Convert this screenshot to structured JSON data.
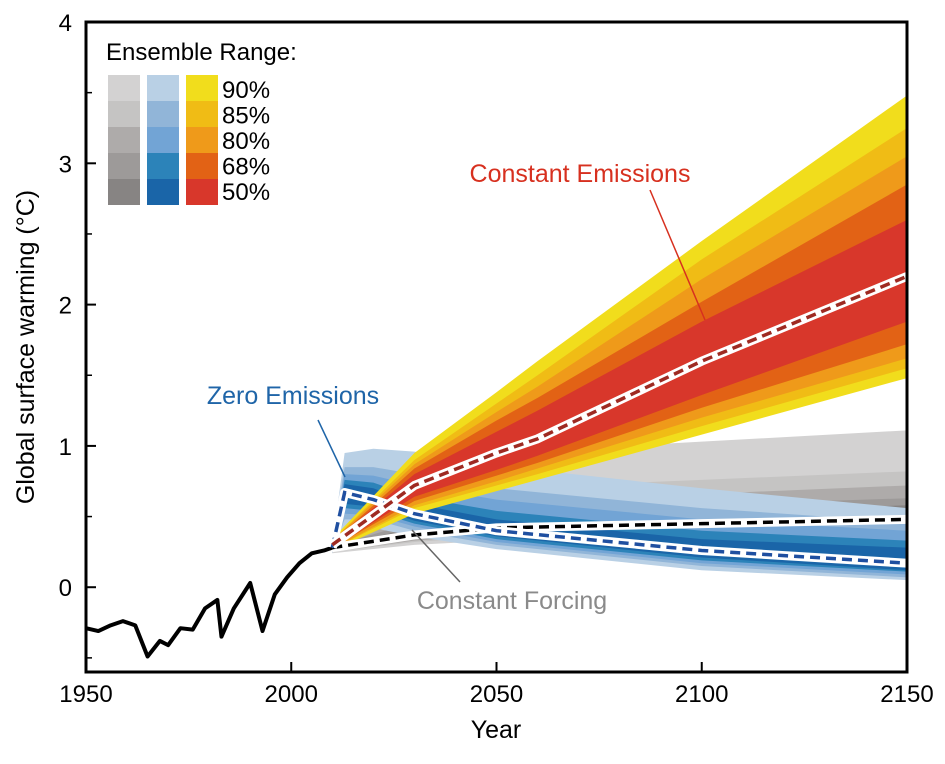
{
  "chart_data": {
    "type": "area",
    "xlabel": "Year",
    "ylabel": "Global surface warming (°C)",
    "xlim": [
      1950,
      2150
    ],
    "ylim": [
      -0.6,
      4
    ],
    "xticks": [
      1950,
      2000,
      2050,
      2100,
      2150
    ],
    "yticks": [
      0,
      1,
      2,
      3,
      4
    ],
    "grid": false,
    "legend": {
      "title": "Ensemble Range:",
      "placement": "top-left",
      "levels": [
        "90%",
        "85%",
        "80%",
        "68%",
        "50%"
      ],
      "colors": {
        "constant_forcing": [
          "#d3d2d2",
          "#c5c4c3",
          "#aeabaa",
          "#9d9a99",
          "#878483"
        ],
        "zero_emissions": [
          "#b9d0e5",
          "#91b5d8",
          "#72a4d5",
          "#2c83b9",
          "#1a65a8"
        ],
        "constant_emissions": [
          "#f1dd1c",
          "#f0bc15",
          "#ef9a1a",
          "#e26215",
          "#d8372b"
        ]
      }
    },
    "historical": {
      "x": [
        1950,
        1953,
        1956,
        1959,
        1962,
        1965,
        1968,
        1970,
        1973,
        1976,
        1979,
        1982,
        1983,
        1986,
        1990,
        1993,
        1996,
        1999,
        2002,
        2005,
        2008,
        2010
      ],
      "y": [
        -0.29,
        -0.31,
        -0.27,
        -0.24,
        -0.27,
        -0.49,
        -0.38,
        -0.41,
        -0.29,
        -0.3,
        -0.15,
        -0.09,
        -0.35,
        -0.15,
        0.03,
        -0.31,
        -0.05,
        0.07,
        0.17,
        0.24,
        0.26,
        0.28
      ]
    },
    "series": [
      {
        "name": "Constant Forcing",
        "color": "#8a8a8a",
        "median_color": "#000000",
        "x": [
          2010,
          2030,
          2050,
          2100,
          2150
        ],
        "median": [
          0.28,
          0.37,
          0.42,
          0.45,
          0.48
        ],
        "bands": {
          "90%": [
            [
              0.24,
              0.3
            ],
            [
              0.3,
              0.92
            ],
            [
              0.33,
              0.95
            ],
            [
              0.35,
              1.03
            ],
            [
              0.37,
              1.11
            ]
          ],
          "85%": [
            [
              0.25,
              0.3
            ],
            [
              0.32,
              0.62
            ],
            [
              0.36,
              0.7
            ],
            [
              0.38,
              0.76
            ],
            [
              0.4,
              0.82
            ]
          ],
          "80%": [
            [
              0.25,
              0.3
            ],
            [
              0.33,
              0.52
            ],
            [
              0.37,
              0.6
            ],
            [
              0.4,
              0.66
            ],
            [
              0.42,
              0.72
            ]
          ],
          "68%": [
            [
              0.26,
              0.29
            ],
            [
              0.34,
              0.46
            ],
            [
              0.39,
              0.53
            ],
            [
              0.42,
              0.58
            ],
            [
              0.44,
              0.63
            ]
          ],
          "50%": [
            [
              0.26,
              0.29
            ],
            [
              0.35,
              0.42
            ],
            [
              0.4,
              0.48
            ],
            [
              0.43,
              0.53
            ],
            [
              0.45,
              0.58
            ]
          ]
        }
      },
      {
        "name": "Zero Emissions",
        "color": "#1f65a8",
        "median_color": "#1f4fa0",
        "x": [
          2010,
          2013,
          2020,
          2030,
          2050,
          2100,
          2150
        ],
        "median": [
          0.28,
          0.67,
          0.62,
          0.52,
          0.4,
          0.26,
          0.17
        ],
        "bands": {
          "90%": [
            [
              0.24,
              0.3
            ],
            [
              0.4,
              0.95
            ],
            [
              0.42,
              0.98
            ],
            [
              0.36,
              0.96
            ],
            [
              0.27,
              0.86
            ],
            [
              0.12,
              0.7
            ],
            [
              0.05,
              0.56
            ]
          ],
          "85%": [
            [
              0.25,
              0.3
            ],
            [
              0.48,
              0.85
            ],
            [
              0.48,
              0.85
            ],
            [
              0.4,
              0.8
            ],
            [
              0.3,
              0.7
            ],
            [
              0.15,
              0.56
            ],
            [
              0.07,
              0.46
            ]
          ],
          "80%": [
            [
              0.25,
              0.29
            ],
            [
              0.52,
              0.8
            ],
            [
              0.51,
              0.79
            ],
            [
              0.43,
              0.72
            ],
            [
              0.32,
              0.62
            ],
            [
              0.17,
              0.48
            ],
            [
              0.09,
              0.4
            ]
          ],
          "68%": [
            [
              0.26,
              0.29
            ],
            [
              0.56,
              0.76
            ],
            [
              0.54,
              0.74
            ],
            [
              0.45,
              0.64
            ],
            [
              0.34,
              0.54
            ],
            [
              0.19,
              0.4
            ],
            [
              0.11,
              0.33
            ]
          ],
          "50%": [
            [
              0.26,
              0.29
            ],
            [
              0.59,
              0.73
            ],
            [
              0.57,
              0.7
            ],
            [
              0.47,
              0.59
            ],
            [
              0.36,
              0.48
            ],
            [
              0.21,
              0.34
            ],
            [
              0.12,
              0.28
            ]
          ]
        }
      },
      {
        "name": "Constant Emissions",
        "color": "#d7301f",
        "median_color": "#9e2a22",
        "x": [
          2010,
          2030,
          2050,
          2060,
          2100,
          2150
        ],
        "median": [
          0.3,
          0.72,
          0.95,
          1.05,
          1.6,
          2.2
        ],
        "bands": {
          "90%": [
            [
              0.26,
              0.34
            ],
            [
              0.52,
              0.95
            ],
            [
              0.68,
              1.38
            ],
            [
              0.76,
              1.6
            ],
            [
              1.08,
              2.45
            ],
            [
              1.48,
              3.48
            ]
          ],
          "85%": [
            [
              0.27,
              0.33
            ],
            [
              0.56,
              0.9
            ],
            [
              0.72,
              1.3
            ],
            [
              0.8,
              1.5
            ],
            [
              1.14,
              2.32
            ],
            [
              1.55,
              3.25
            ]
          ],
          "80%": [
            [
              0.27,
              0.33
            ],
            [
              0.58,
              0.87
            ],
            [
              0.75,
              1.24
            ],
            [
              0.84,
              1.42
            ],
            [
              1.2,
              2.18
            ],
            [
              1.62,
              3.05
            ]
          ],
          "68%": [
            [
              0.28,
              0.32
            ],
            [
              0.61,
              0.84
            ],
            [
              0.79,
              1.18
            ],
            [
              0.88,
              1.34
            ],
            [
              1.27,
              2.02
            ],
            [
              1.72,
              2.85
            ]
          ],
          "50%": [
            [
              0.28,
              0.32
            ],
            [
              0.64,
              0.8
            ],
            [
              0.83,
              1.1
            ],
            [
              0.93,
              1.25
            ],
            [
              1.36,
              1.88
            ],
            [
              1.88,
              2.6
            ]
          ]
        }
      }
    ]
  }
}
